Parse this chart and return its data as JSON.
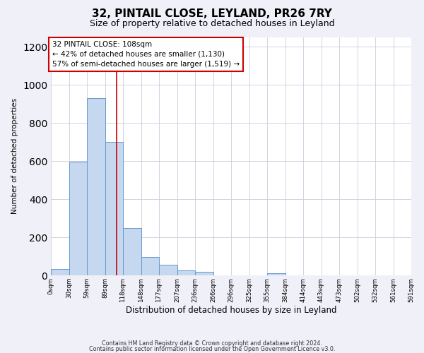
{
  "title1": "32, PINTAIL CLOSE, LEYLAND, PR26 7RY",
  "title2": "Size of property relative to detached houses in Leyland",
  "xlabel": "Distribution of detached houses by size in Leyland",
  "ylabel": "Number of detached properties",
  "bin_width": 29.5,
  "bar_lefts": [
    0,
    29.5,
    59,
    88.5,
    118,
    147.5,
    177,
    206.5,
    236,
    265.5,
    295,
    324.5,
    354,
    383.5,
    413,
    442.5,
    472,
    501.5,
    531,
    560.5
  ],
  "bar_heights": [
    35,
    595,
    930,
    700,
    248,
    95,
    55,
    25,
    18,
    0,
    0,
    0,
    10,
    0,
    0,
    0,
    0,
    0,
    0,
    0
  ],
  "bar_color": "#c5d8f0",
  "bar_edge_color": "#6699cc",
  "property_size": 108,
  "vline_color": "#cc0000",
  "annotation_title": "32 PINTAIL CLOSE: 108sqm",
  "annotation_line1": "← 42% of detached houses are smaller (1,130)",
  "annotation_line2": "57% of semi-detached houses are larger (1,519) →",
  "box_edge_color": "#cc0000",
  "tick_labels": [
    "0sqm",
    "30sqm",
    "59sqm",
    "89sqm",
    "118sqm",
    "148sqm",
    "177sqm",
    "207sqm",
    "236sqm",
    "266sqm",
    "296sqm",
    "325sqm",
    "355sqm",
    "384sqm",
    "414sqm",
    "443sqm",
    "473sqm",
    "502sqm",
    "532sqm",
    "561sqm",
    "591sqm"
  ],
  "xlim": [
    0,
    590
  ],
  "ylim": [
    0,
    1250
  ],
  "yticks": [
    0,
    200,
    400,
    600,
    800,
    1000,
    1200
  ],
  "footnote1": "Contains HM Land Registry data © Crown copyright and database right 2024.",
  "footnote2": "Contains public sector information licensed under the Open Government Licence v3.0.",
  "background_color": "#f0f0f8",
  "plot_bg_color": "#ffffff",
  "grid_color": "#ccccdd"
}
